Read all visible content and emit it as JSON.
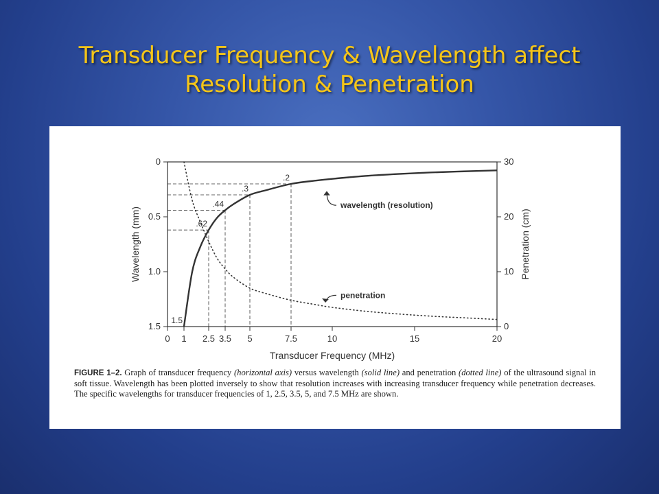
{
  "slide": {
    "title_line1": "Transducer Frequency & Wavelength affect",
    "title_line2": "Resolution & Penetration"
  },
  "colors": {
    "title": "#f5c518",
    "background": "#3556a8",
    "figure_bg": "#ffffff",
    "ink": "#333333"
  },
  "chart_data": {
    "type": "line",
    "xlabel": "Transducer Frequency (MHz)",
    "ylabel_left": "Wavelength (mm)",
    "ylabel_right": "Penetration (cm)",
    "xlim": [
      0,
      20
    ],
    "x_ticks": [
      "0",
      "1",
      "2.5",
      "3.5",
      "5",
      "7.5",
      "10",
      "15",
      "20"
    ],
    "left_axis": {
      "range": [
        0,
        1.5
      ],
      "inverted": true,
      "ticks": [
        "0",
        "0.5",
        "1.0",
        "1.5"
      ]
    },
    "right_axis": {
      "range": [
        0,
        30
      ],
      "ticks": [
        "0",
        "10",
        "20",
        "30"
      ]
    },
    "series": [
      {
        "name": "wavelength (resolution)",
        "style": "solid",
        "axis": "left",
        "x": [
          1,
          1.5,
          2,
          2.5,
          3,
          3.5,
          4,
          5,
          6,
          7.5,
          9,
          10,
          12,
          14,
          16,
          18,
          20
        ],
        "values": [
          1.5,
          1.0,
          0.77,
          0.62,
          0.51,
          0.44,
          0.385,
          0.3,
          0.257,
          0.2,
          0.17,
          0.154,
          0.128,
          0.11,
          0.096,
          0.086,
          0.077
        ]
      },
      {
        "name": "penetration",
        "style": "dotted",
        "axis": "right",
        "x": [
          1,
          1.5,
          2,
          2.5,
          3,
          3.5,
          4,
          5,
          6,
          7.5,
          9,
          10,
          12,
          14,
          16,
          18,
          20
        ],
        "values": [
          30,
          23,
          19,
          15.5,
          12.5,
          10.5,
          9,
          7,
          6,
          4.8,
          4,
          3.5,
          2.8,
          2.3,
          1.9,
          1.6,
          1.3
        ]
      }
    ],
    "point_labels": [
      {
        "text": "1.5",
        "x": 1,
        "y": 1.5
      },
      {
        "text": ".62",
        "x": 2.5,
        "y": 0.62
      },
      {
        "text": ".44",
        "x": 3.5,
        "y": 0.44
      },
      {
        "text": ".3",
        "x": 5,
        "y": 0.3
      },
      {
        "text": ".2",
        "x": 7.5,
        "y": 0.2
      }
    ],
    "annotations": [
      {
        "text": "wavelength (resolution)",
        "x": 10.5,
        "y": 0.42
      },
      {
        "text": "penetration",
        "x": 10.5,
        "y": 1.24
      }
    ],
    "grid": false
  },
  "caption": {
    "label": "FIGURE 1–2.",
    "text_a": " Graph of transducer frequency ",
    "em1": "(horizontal axis)",
    "text_b": " versus wavelength ",
    "em2": "(solid line)",
    "text_c": " and penetration ",
    "em3": "(dotted line)",
    "text_d": " of the ultrasound signal in soft tissue. Wavelength has been plotted inversely to show that resolution increases with increasing transducer frequency while penetration decreases. The specific wavelengths for transducer frequencies of 1, 2.5, 3.5, 5, and 7.5 MHz are shown."
  }
}
